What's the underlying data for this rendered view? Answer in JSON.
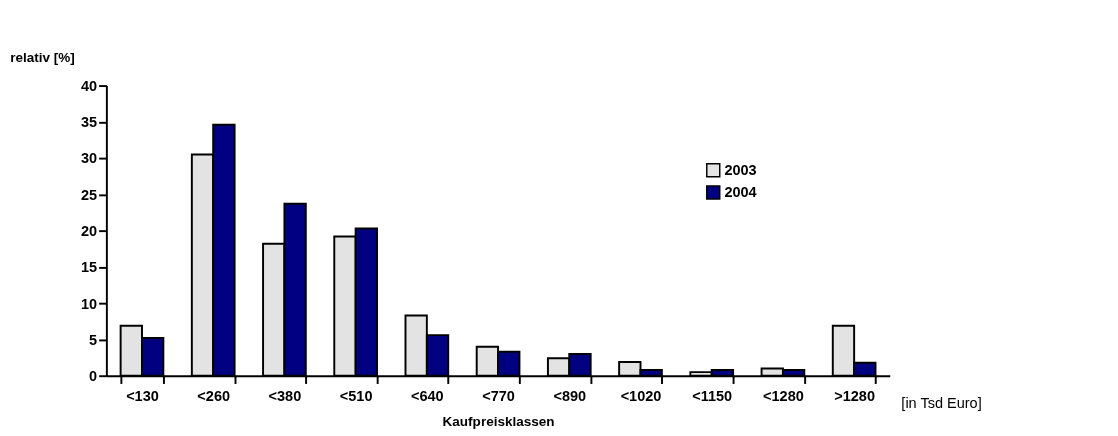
{
  "chart_data": {
    "type": "bar",
    "xlabel": "Kaufpreisklassen",
    "ylabel": "relativ [%]",
    "annotations": [
      "[in Tsd Euro]"
    ],
    "categories": [
      "<130",
      "<260",
      "<380",
      "<510",
      "<640",
      "<770",
      "<890",
      "<1020",
      "<1150",
      "<1280",
      ">1280"
    ],
    "series": [
      {
        "name": "2003",
        "color": "#e3e3e3",
        "values": [
          6.9,
          30.5,
          18.2,
          19.2,
          8.3,
          4.0,
          2.4,
          1.9,
          0.5,
          1.0,
          6.9
        ]
      },
      {
        "name": "2004",
        "color": "#000080",
        "values": [
          5.2,
          34.6,
          23.7,
          20.3,
          5.6,
          3.3,
          3.0,
          0.8,
          0.8,
          0.8,
          1.8
        ]
      }
    ],
    "ylim": [
      0,
      40
    ],
    "yticks": [
      0,
      5,
      10,
      15,
      20,
      25,
      30,
      35,
      40
    ],
    "grid": false,
    "legend": "right"
  }
}
